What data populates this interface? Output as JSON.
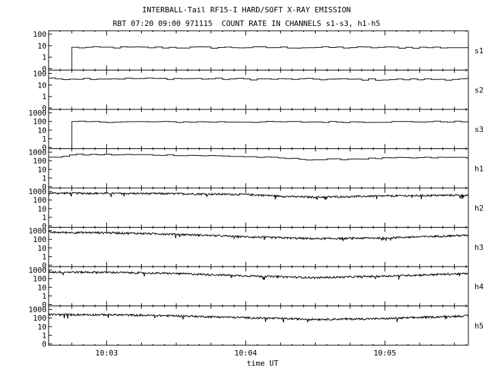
{
  "header": {
    "title": "INTERBALL-Tail RF15-I HARD/SOFT X-RAY EMISSION",
    "subtitle": "RBT 07:20 09:00 971115  COUNT RATE IN CHANNELS s1-s3, h1-h5"
  },
  "chart_data": {
    "type": "line",
    "xlabel": "time UT",
    "xlim": [
      "10:02:35",
      "10:05:36"
    ],
    "x_ticks": [
      "10:03",
      "10:04",
      "10:05"
    ],
    "y_scale": "log",
    "grid": false,
    "panels": [
      {
        "name": "s1",
        "y_ticks": [
          "0",
          "1",
          "10",
          "100"
        ],
        "style": "step",
        "data_start": "10:02:45",
        "series": {
          "times": [
            "10:02:45",
            "10:03:00",
            "10:03:30",
            "10:04:00",
            "10:04:30",
            "10:05:00",
            "10:05:30"
          ],
          "values": [
            7,
            7,
            7,
            7,
            7,
            7,
            7
          ]
        }
      },
      {
        "name": "s2",
        "y_ticks": [
          "0",
          "1",
          "10",
          "100"
        ],
        "style": "step",
        "series": {
          "times": [
            "10:02:35",
            "10:03:00",
            "10:03:30",
            "10:04:00",
            "10:04:30",
            "10:05:00",
            "10:05:36"
          ],
          "values": [
            35,
            36,
            36,
            33,
            32,
            30,
            33
          ]
        }
      },
      {
        "name": "s3",
        "y_ticks": [
          "0",
          "1",
          "10",
          "100",
          "1000"
        ],
        "style": "step",
        "data_start": "10:02:45",
        "series": {
          "times": [
            "10:02:45",
            "10:03:00",
            "10:03:30",
            "10:04:00",
            "10:04:30",
            "10:05:00",
            "10:05:30"
          ],
          "values": [
            90,
            90,
            88,
            88,
            88,
            90,
            95
          ]
        }
      },
      {
        "name": "h1",
        "y_ticks": [
          "0",
          "1",
          "10",
          "100",
          "1000"
        ],
        "style": "step",
        "series": {
          "times": [
            "10:02:35",
            "10:02:45",
            "10:03:00",
            "10:03:30",
            "10:04:00",
            "10:04:30",
            "10:05:00",
            "10:05:36"
          ],
          "values": [
            220,
            500,
            520,
            450,
            300,
            130,
            200,
            250
          ]
        }
      },
      {
        "name": "h2",
        "y_ticks": [
          "0",
          "1",
          "10",
          "100",
          "1000"
        ],
        "style": "noisy",
        "series": {
          "times": [
            "10:02:35",
            "10:03:00",
            "10:03:30",
            "10:04:00",
            "10:04:20",
            "10:04:30",
            "10:05:00",
            "10:05:36"
          ],
          "values": [
            650,
            600,
            550,
            450,
            250,
            220,
            300,
            380
          ]
        }
      },
      {
        "name": "h3",
        "y_ticks": [
          "0",
          "1",
          "10",
          "100",
          "1000"
        ],
        "style": "noisy",
        "series": {
          "times": [
            "10:02:35",
            "10:03:00",
            "10:03:30",
            "10:04:00",
            "10:04:30",
            "10:05:00",
            "10:05:36"
          ],
          "values": [
            650,
            600,
            400,
            200,
            120,
            150,
            300
          ]
        }
      },
      {
        "name": "h4",
        "y_ticks": [
          "0",
          "1",
          "10",
          "100",
          "1000"
        ],
        "style": "noisy",
        "series": {
          "times": [
            "10:02:35",
            "10:03:00",
            "10:03:30",
            "10:04:00",
            "10:04:30",
            "10:05:00",
            "10:05:36"
          ],
          "values": [
            600,
            550,
            400,
            220,
            130,
            200,
            400
          ]
        }
      },
      {
        "name": "h5",
        "y_ticks": [
          "0",
          "1",
          "10",
          "100",
          "1000"
        ],
        "style": "noisy",
        "series": {
          "times": [
            "10:02:35",
            "10:03:00",
            "10:03:30",
            "10:04:00",
            "10:04:30",
            "10:05:00",
            "10:05:36"
          ],
          "values": [
            250,
            240,
            180,
            110,
            70,
            85,
            180
          ]
        }
      }
    ]
  }
}
